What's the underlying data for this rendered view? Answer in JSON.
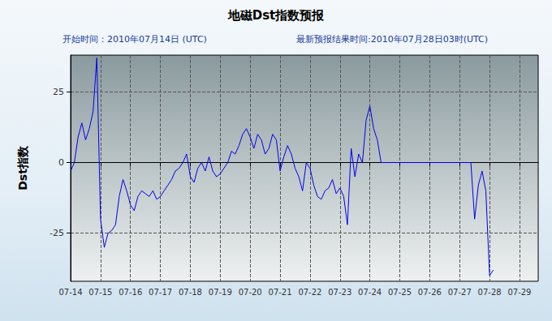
{
  "chart_data": {
    "type": "line",
    "title": "地磁Dst指数预报",
    "subtitle": [
      "开始时间：2010年07月14日 (UTC)",
      "最新预报结果时间:2010年07月28日03时(UTC)"
    ],
    "y_label": "Dst指数",
    "color": "#0000ee",
    "grid": true,
    "ylim": [
      -42,
      38
    ],
    "yticks": [
      -25,
      0,
      25
    ],
    "categories": [
      "07-14",
      null,
      null,
      null,
      null,
      null,
      null,
      null,
      "07-15",
      null,
      null,
      null,
      null,
      null,
      null,
      null,
      "07-16",
      null,
      null,
      null,
      null,
      null,
      null,
      null,
      "07-17",
      null,
      null,
      null,
      null,
      null,
      null,
      null,
      "07-18",
      null,
      null,
      null,
      null,
      null,
      null,
      null,
      "07-19",
      null,
      null,
      null,
      null,
      null,
      null,
      null,
      "07-20",
      null,
      null,
      null,
      null,
      null,
      null,
      null,
      "07-21",
      null,
      null,
      null,
      null,
      null,
      null,
      null,
      "07-22",
      null,
      null,
      null,
      null,
      null,
      null,
      null,
      "07-23",
      null,
      null,
      null,
      null,
      null,
      null,
      null,
      "07-24",
      null,
      null,
      null,
      null,
      null,
      null,
      null,
      "07-25",
      null,
      null,
      null,
      null,
      null,
      null,
      null,
      "07-26",
      null,
      null,
      null,
      null,
      null,
      null,
      null,
      "07-27",
      null,
      null,
      null,
      null,
      null,
      null,
      null,
      "07-28",
      null,
      null,
      null,
      null,
      null,
      null,
      null,
      "07-29",
      null,
      null,
      null,
      null,
      null
    ],
    "values": [
      -3,
      0,
      9,
      14,
      8,
      12,
      18,
      37,
      -20,
      -30,
      -25,
      -24,
      -22,
      -12,
      -6,
      -10,
      -15,
      -17,
      -12,
      -10,
      -11,
      -12,
      -10,
      -13,
      -12,
      -10,
      -8,
      -6,
      -3,
      -2,
      0,
      3,
      -5,
      -7,
      -2,
      0,
      -3,
      2,
      -3,
      -5,
      -4,
      -2,
      0,
      4,
      3,
      6,
      10,
      12,
      9,
      5,
      10,
      8,
      3,
      5,
      10,
      8,
      -3,
      2,
      6,
      3,
      -2,
      -5,
      -10,
      0,
      -2,
      -8,
      -12,
      -13,
      -10,
      -9,
      -6,
      -11,
      -9,
      -12,
      -22,
      5,
      -5,
      3,
      0,
      15,
      20,
      12,
      8,
      0,
      0,
      0,
      0,
      0,
      0,
      0,
      0,
      0,
      0,
      0,
      0,
      0,
      0,
      0,
      0,
      0,
      0,
      0,
      0,
      0,
      0,
      0,
      0,
      0,
      -20,
      -8,
      -3,
      -10,
      -40,
      -38,
      null,
      null,
      null,
      null,
      null,
      null,
      null,
      null,
      null,
      null,
      null,
      null
    ]
  }
}
